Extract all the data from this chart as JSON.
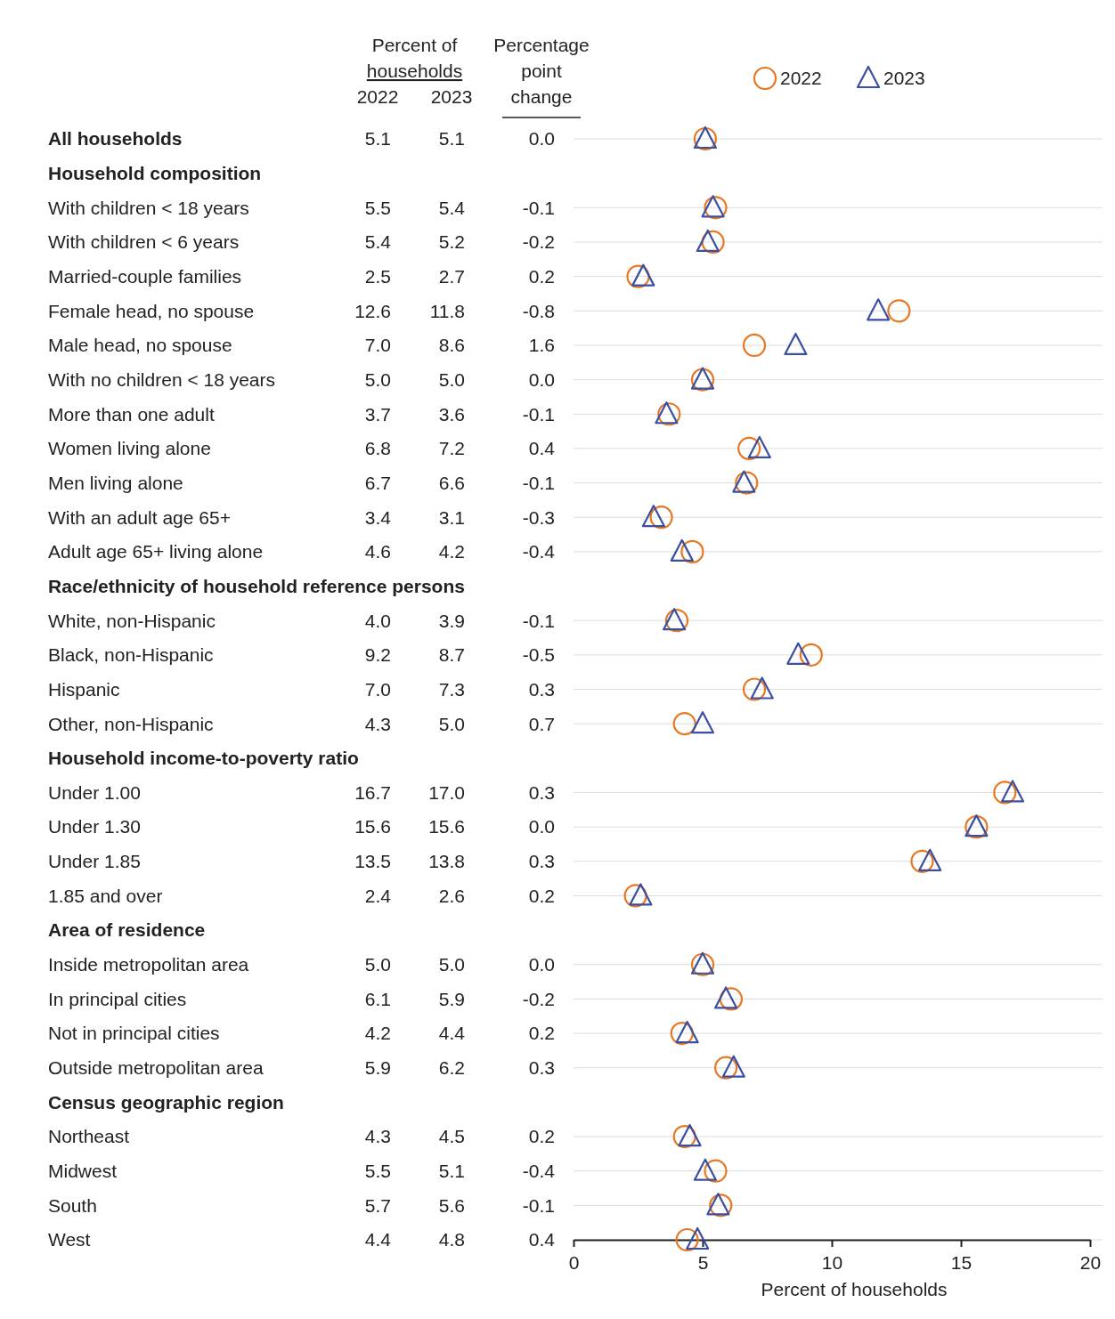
{
  "chart_data": {
    "type": "scatter",
    "orientation": "horizontal",
    "xlabel": "Percent of households",
    "annotations": [
      "Percent of households",
      "Percentage point change",
      "0.0",
      "-0.1",
      "-0.2",
      "0.2",
      "-0.8",
      "1.6",
      "0.0",
      "-0.1",
      "0.4",
      "-0.1",
      "-0.3",
      "-0.4",
      "-0.1",
      "-0.5",
      "0.3",
      "0.7",
      "0.3",
      "0.0",
      "0.3",
      "0.2",
      "0.0",
      "-0.2",
      "0.2",
      "0.3",
      "0.2",
      "-0.4",
      "-0.1",
      "0.4"
    ],
    "categories": [
      "All households",
      "Household composition",
      "With children < 18 years",
      "With children < 6 years",
      "Married-couple families",
      "Female head, no spouse",
      "Male head, no spouse",
      "With no children < 18 years",
      "More than one adult",
      "Women living alone",
      "Men living alone",
      "With an adult age 65+",
      "Adult age 65+ living alone",
      "Race/ethnicity of household reference persons",
      "White, non-Hispanic",
      "Black, non-Hispanic",
      "Hispanic",
      "Other, non-Hispanic",
      "Household income-to-poverty ratio",
      "Under 1.00",
      "Under 1.30",
      "Under 1.85",
      "1.85 and over",
      "Area of residence",
      "Inside metropolitan area",
      "In principal cities",
      "Not in principal cities",
      "Outside metropolitan area",
      "Census geographic region",
      "Northeast",
      "Midwest",
      "South",
      "West"
    ],
    "series": [
      {
        "name": "2022",
        "color": "#e87722",
        "marker": "circle",
        "values": [
          5.1,
          null,
          5.5,
          5.4,
          2.5,
          12.6,
          7.0,
          5.0,
          3.7,
          6.8,
          6.7,
          3.4,
          4.6,
          null,
          4.0,
          9.2,
          7.0,
          4.3,
          null,
          16.7,
          15.6,
          13.5,
          2.4,
          null,
          5.0,
          6.1,
          4.2,
          5.9,
          null,
          4.3,
          5.5,
          5.7,
          4.4
        ],
        "value_labels": [
          "5.1",
          null,
          "5.5",
          "5.4",
          "2.5",
          "12.6",
          "7.0",
          "5.0",
          "3.7",
          "6.8",
          "6.7",
          "3.4",
          "4.6",
          null,
          "4.0",
          "9.2",
          "7.0",
          "4.3",
          null,
          "16.7",
          "15.6",
          "13.5",
          "2.4",
          null,
          "5.0",
          "6.1",
          "4.2",
          "5.9",
          null,
          "4.3",
          "5.5",
          "5.7",
          "4.4"
        ]
      },
      {
        "name": "2023",
        "color": "#3a4fa0",
        "marker": "triangle",
        "values": [
          5.1,
          null,
          5.4,
          5.2,
          2.7,
          11.8,
          8.6,
          5.0,
          3.6,
          7.2,
          6.6,
          3.1,
          4.2,
          null,
          3.9,
          8.7,
          7.3,
          5.0,
          null,
          17.0,
          15.6,
          13.8,
          2.6,
          null,
          5.0,
          5.9,
          4.4,
          6.2,
          null,
          4.5,
          5.1,
          5.6,
          4.8
        ],
        "value_labels": [
          "5.1",
          null,
          "5.4",
          "5.2",
          "2.7",
          "11.8",
          "8.6",
          "5.0",
          "3.6",
          "7.2",
          "6.6",
          "3.1",
          "4.2",
          null,
          "3.9",
          "8.7",
          "7.3",
          "5.0",
          null,
          "17.0",
          "15.6",
          "13.8",
          "2.6",
          null,
          "5.0",
          "5.9",
          "4.4",
          "6.2",
          null,
          "4.5",
          "5.1",
          "5.6",
          "4.8"
        ]
      }
    ],
    "xlim": [
      0,
      20
    ],
    "xticks": [
      0,
      5,
      10,
      15,
      20
    ],
    "grid": "y",
    "legend": "top right"
  }
}
